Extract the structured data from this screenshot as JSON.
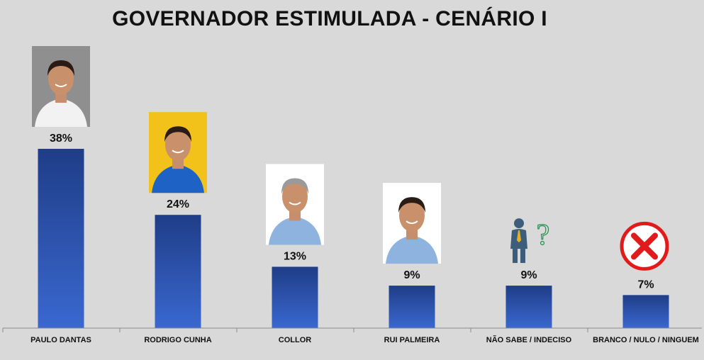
{
  "chart_data": {
    "type": "bar",
    "title": "GOVERNADOR ESTIMULADA - CENÁRIO I",
    "categories": [
      "PAULO DANTAS",
      "RODRIGO CUNHA",
      "COLLOR",
      "RUI PALMEIRA",
      "NÃO SABE / INDECISO",
      "BRANCO / NULO / NINGUEM"
    ],
    "values": [
      38,
      24,
      13,
      9,
      9,
      7
    ],
    "value_labels": [
      "38%",
      "24%",
      "13%",
      "9%",
      "9%",
      "7%"
    ],
    "ylim": [
      0,
      40
    ],
    "grid": false,
    "legend": "none",
    "bar_color_top": "#1f3d87",
    "bar_color_bottom": "#3a68d0",
    "icons": [
      "candidate-photo",
      "candidate-photo",
      "candidate-photo",
      "candidate-photo",
      "undecided-person-icon",
      "red-x-icon"
    ]
  }
}
